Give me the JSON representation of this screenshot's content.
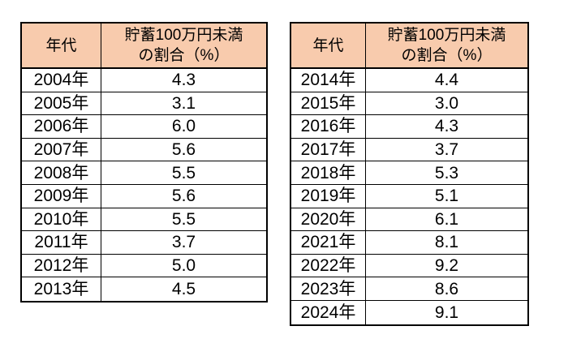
{
  "accent_colors": {
    "header_fill": "#F8CBAD",
    "border": "#000000",
    "text": "#000000",
    "page_background": "#FFFFFF"
  },
  "tables": [
    {
      "col1_header": "年代",
      "col2_header_line1": "貯蓄100万円未満",
      "col2_header_line2": "の割合（%）",
      "rows": [
        {
          "year": "2004年",
          "value": "4.3"
        },
        {
          "year": "2005年",
          "value": "3.1"
        },
        {
          "year": "2006年",
          "value": "6.0"
        },
        {
          "year": "2007年",
          "value": "5.6"
        },
        {
          "year": "2008年",
          "value": "5.5"
        },
        {
          "year": "2009年",
          "value": "5.6"
        },
        {
          "year": "2010年",
          "value": "5.5"
        },
        {
          "year": "2011年",
          "value": "3.7"
        },
        {
          "year": "2012年",
          "value": "5.0"
        },
        {
          "year": "2013年",
          "value": "4.5"
        }
      ]
    },
    {
      "col1_header": "年代",
      "col2_header_line1": "貯蓄100万円未満",
      "col2_header_line2": "の割合（%）",
      "rows": [
        {
          "year": "2014年",
          "value": "4.4"
        },
        {
          "year": "2015年",
          "value": "3.0"
        },
        {
          "year": "2016年",
          "value": "4.3"
        },
        {
          "year": "2017年",
          "value": "3.7"
        },
        {
          "year": "2018年",
          "value": "5.3"
        },
        {
          "year": "2019年",
          "value": "5.1"
        },
        {
          "year": "2020年",
          "value": "6.1"
        },
        {
          "year": "2021年",
          "value": "8.1"
        },
        {
          "year": "2022年",
          "value": "9.2"
        },
        {
          "year": "2023年",
          "value": "8.6"
        },
        {
          "year": "2024年",
          "value": "9.1"
        }
      ]
    }
  ],
  "chart_data": [
    {
      "type": "table",
      "title": "貯蓄100万円未満の割合（2004年〜2013年）",
      "columns": [
        "年代",
        "貯蓄100万円未満の割合（%）"
      ],
      "categories": [
        "2004年",
        "2005年",
        "2006年",
        "2007年",
        "2008年",
        "2009年",
        "2010年",
        "2011年",
        "2012年",
        "2013年"
      ],
      "values": [
        4.3,
        3.1,
        6.0,
        5.6,
        5.5,
        5.6,
        5.5,
        3.7,
        5.0,
        4.5
      ]
    },
    {
      "type": "table",
      "title": "貯蓄100万円未満の割合（2014年〜2024年）",
      "columns": [
        "年代",
        "貯蓄100万円未満の割合（%）"
      ],
      "categories": [
        "2014年",
        "2015年",
        "2016年",
        "2017年",
        "2018年",
        "2019年",
        "2020年",
        "2021年",
        "2022年",
        "2023年",
        "2024年"
      ],
      "values": [
        4.4,
        3.0,
        4.3,
        3.7,
        5.3,
        5.1,
        6.1,
        8.1,
        9.2,
        8.6,
        9.1
      ]
    }
  ]
}
